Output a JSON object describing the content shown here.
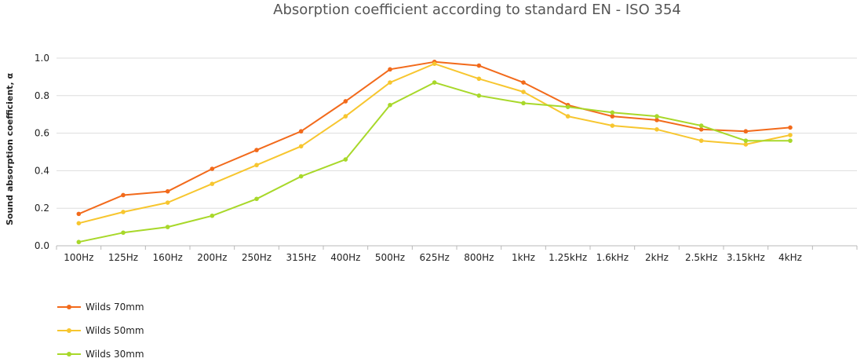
{
  "chart_data": {
    "type": "line",
    "title": "Absorption coefficient according to standard EN - ISO 354",
    "xlabel": "",
    "ylabel": "Sound absorption coefficient, α",
    "ylim": [
      0,
      1
    ],
    "yticks": [
      "0.0",
      "0.2",
      "0.4",
      "0.6",
      "0.8",
      "1.0"
    ],
    "ytick_values": [
      0,
      0.2,
      0.4,
      0.6,
      0.8,
      1.0
    ],
    "grid": true,
    "legend_position": "bottom-left",
    "categories": [
      "100Hz",
      "125Hz",
      "160Hz",
      "200Hz",
      "250Hz",
      "315Hz",
      "400Hz",
      "500Hz",
      "625Hz",
      "800Hz",
      "1kHz",
      "1.25kHz",
      "1.6kHz",
      "2kHz",
      "2.5kHz",
      "3.15kHz",
      "4kHz"
    ],
    "series": [
      {
        "name": "Wilds 70mm",
        "color": "#f26a1b",
        "values": [
          0.17,
          0.27,
          0.29,
          0.41,
          0.51,
          0.61,
          0.77,
          0.94,
          0.98,
          0.96,
          0.87,
          0.75,
          0.69,
          0.67,
          0.62,
          0.61,
          0.63
        ]
      },
      {
        "name": "Wilds 50mm",
        "color": "#f7c62f",
        "values": [
          0.12,
          0.18,
          0.23,
          0.33,
          0.43,
          0.53,
          0.69,
          0.87,
          0.97,
          0.89,
          0.82,
          0.69,
          0.64,
          0.62,
          0.56,
          0.54,
          0.59
        ]
      },
      {
        "name": "Wilds 30mm",
        "color": "#a8d82a",
        "values": [
          0.02,
          0.07,
          0.1,
          0.16,
          0.25,
          0.37,
          0.46,
          0.75,
          0.87,
          0.8,
          0.76,
          0.74,
          0.71,
          0.69,
          0.64,
          0.56,
          0.56
        ]
      }
    ]
  }
}
